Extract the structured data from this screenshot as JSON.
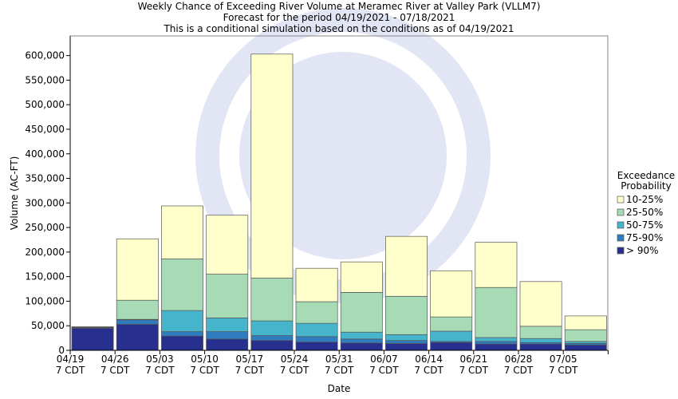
{
  "chart_data": {
    "type": "stacked_bar",
    "title": "Weekly Chance of Exceeding River Volume at Meramec River at Valley Park (VLLM7)",
    "subtitle": "Forecast for the period 04/19/2021 - 07/18/2021",
    "note": "This is a conditional simulation based on the conditions as of 04/19/2021",
    "x_label": "Date",
    "y_label": "Volume (AC-FT)",
    "legend_title": "Exceedance Probability",
    "legend_position": "right",
    "categories": [
      "04/19\n7 CDT",
      "04/26\n7 CDT",
      "05/03\n7 CDT",
      "05/10\n7 CDT",
      "05/17\n7 CDT",
      "05/24\n7 CDT",
      "05/31\n7 CDT",
      "06/07\n7 CDT",
      "06/14\n7 CDT",
      "06/21\n7 CDT",
      "06/28\n7 CDT",
      "07/05\n7 CDT"
    ],
    "series": [
      {
        "name": "> 90%",
        "color": "#27308f",
        "values": [
          45000,
          53000,
          29000,
          23000,
          20000,
          17000,
          15000,
          14000,
          16000,
          13000,
          13000,
          11000
        ]
      },
      {
        "name": "75-90%",
        "color": "#2f7dbf",
        "values": [
          1000,
          9000,
          9000,
          15000,
          10000,
          11000,
          8000,
          6000,
          2000,
          5000,
          3000,
          3000
        ]
      },
      {
        "name": "50-75%",
        "color": "#46b5cc",
        "values": [
          500,
          1000,
          43000,
          28000,
          30000,
          27000,
          14000,
          12000,
          21000,
          8000,
          8000,
          4000
        ]
      },
      {
        "name": "25-50%",
        "color": "#a6dbb6",
        "values": [
          500,
          39000,
          105000,
          89000,
          87000,
          44000,
          81000,
          78000,
          29000,
          102000,
          25000,
          24000
        ]
      },
      {
        "name": "10-25%",
        "color": "#ffffcc",
        "values": [
          1000,
          125000,
          108000,
          120000,
          456000,
          68000,
          62000,
          122000,
          94000,
          92000,
          91000,
          28000
        ]
      }
    ],
    "ylim": [
      0,
      640000
    ],
    "yticks": [
      0,
      {
        "value": 50000,
        "label": "50,000"
      },
      {
        "value": 100000,
        "label": "100,000"
      },
      {
        "value": 150000,
        "label": "150,000"
      },
      {
        "value": 200000,
        "label": "200,000"
      },
      {
        "value": 250000,
        "label": "250,000"
      },
      {
        "value": 300000,
        "label": "300,000"
      },
      {
        "value": 350000,
        "label": "350,000"
      },
      {
        "value": 400000,
        "label": "400,000"
      },
      {
        "value": 450000,
        "label": "450,000"
      },
      {
        "value": 500000,
        "label": "500,000"
      },
      {
        "value": 550000,
        "label": "550,000"
      },
      {
        "value": 600000,
        "label": "600,000"
      }
    ],
    "grid": false
  }
}
